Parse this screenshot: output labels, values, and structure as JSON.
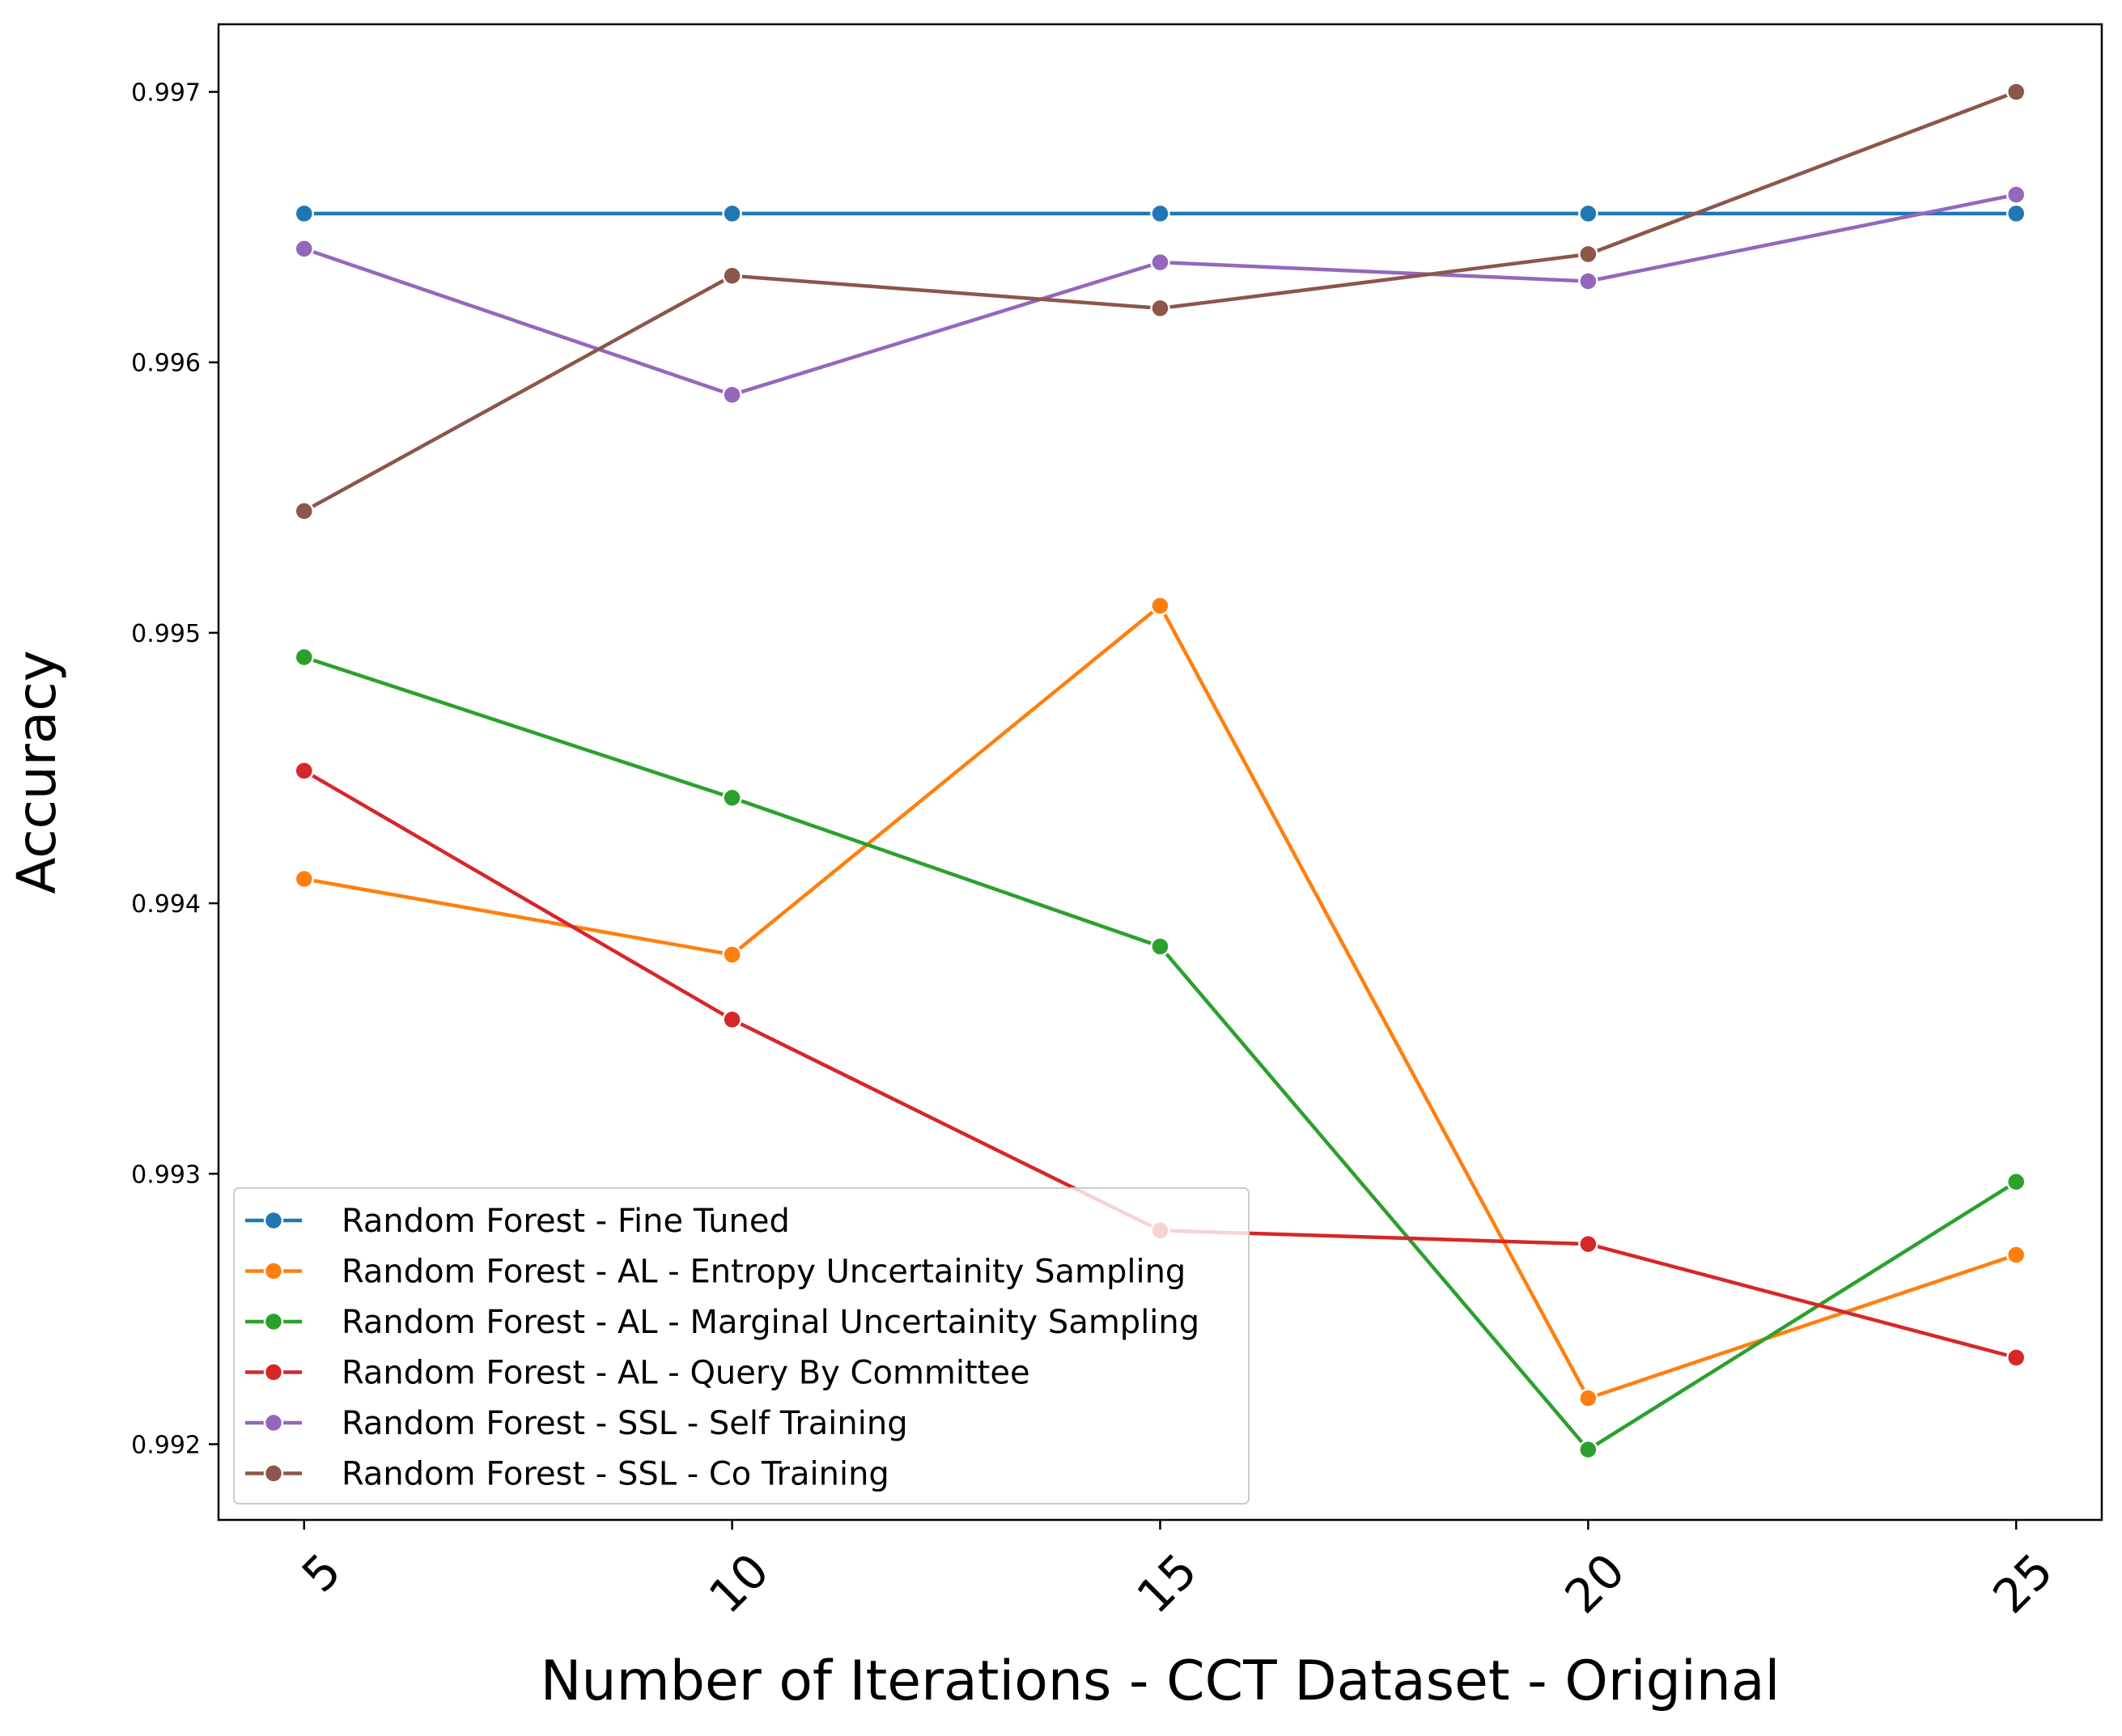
{
  "chart_data": {
    "type": "line",
    "title": "",
    "xlabel": "Number of Iterations - CCT Dataset - Original",
    "ylabel": "Accuracy",
    "x": [
      5,
      10,
      15,
      20,
      25
    ],
    "xticks": [
      "5",
      "10",
      "15",
      "20",
      "25"
    ],
    "yticks": [
      "0.992",
      "0.993",
      "0.994",
      "0.995",
      "0.996",
      "0.997"
    ],
    "ytick_values": [
      0.992,
      0.993,
      0.994,
      0.995,
      0.996,
      0.997
    ],
    "xlim": [
      4.0,
      26.0
    ],
    "ylim": [
      0.99172,
      0.99725
    ],
    "grid": false,
    "legend_position": "lower-left",
    "series": [
      {
        "name": "Random Forest - Fine Tuned",
        "color": "#1f77b4",
        "values": [
          0.99655,
          0.99655,
          0.99655,
          0.99655,
          0.99655
        ]
      },
      {
        "name": "Random Forest - AL - Entropy Uncertainity Sampling",
        "color": "#ff7f0e",
        "values": [
          0.99409,
          0.99381,
          0.9951,
          0.99217,
          0.9927
        ]
      },
      {
        "name": "Random Forest - AL - Marginal Uncertainity Sampling",
        "color": "#2ca02c",
        "values": [
          0.99491,
          0.99439,
          0.99384,
          0.99198,
          0.99297
        ]
      },
      {
        "name": "Random Forest - AL - Query By Committee",
        "color": "#d62728",
        "values": [
          0.99449,
          0.99357,
          0.99279,
          0.99274,
          0.99232
        ]
      },
      {
        "name": "Random Forest - SSL - Self Training",
        "color": "#9467bd",
        "values": [
          0.99642,
          0.99588,
          0.99637,
          0.9963,
          0.99662
        ]
      },
      {
        "name": "Random Forest - SSL - Co Training",
        "color": "#8c564b",
        "values": [
          0.99545,
          0.99632,
          0.9962,
          0.9964,
          0.997
        ]
      }
    ]
  }
}
